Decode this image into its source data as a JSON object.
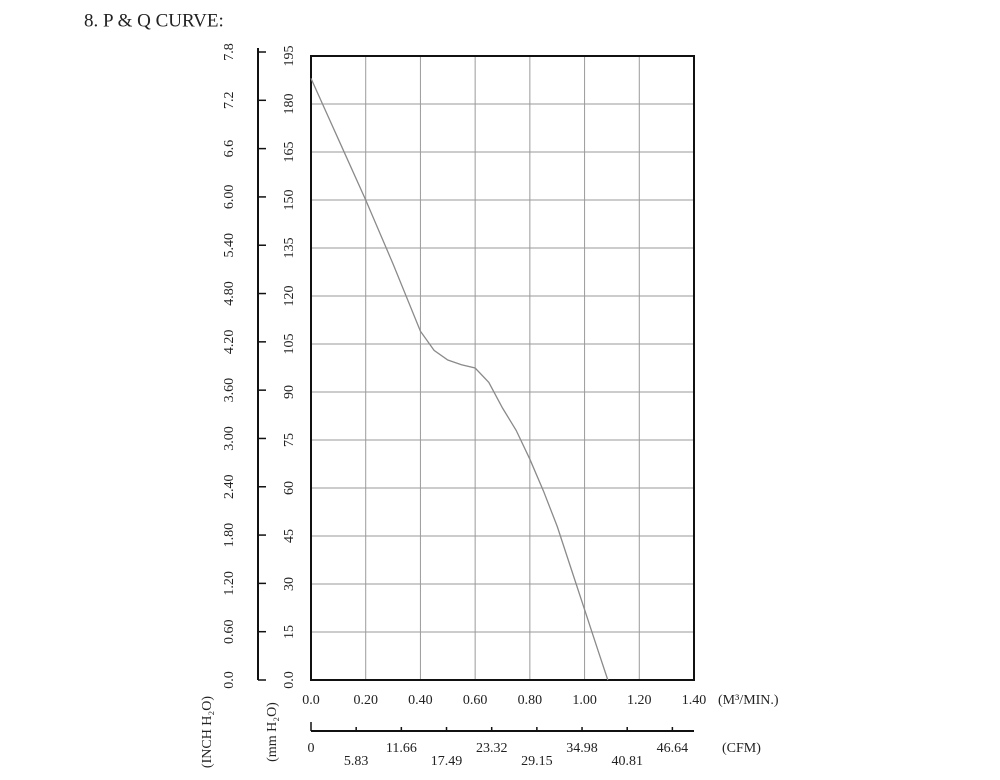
{
  "chart_data": {
    "type": "line",
    "title": "8. P & Q CURVE:",
    "x_label": "(M³/MIN.)",
    "x2_label": "(CFM)",
    "y_label": "(mm H₂O)",
    "y2_label": "(INCH H₂O)",
    "x": [
      0,
      0.1,
      0.2,
      0.3,
      0.4,
      0.45,
      0.5,
      0.55,
      0.6,
      0.65,
      0.7,
      0.75,
      0.8,
      0.85,
      0.9,
      0.95,
      1.0,
      1.05,
      1.085
    ],
    "values": [
      188,
      169,
      150,
      130,
      109,
      103,
      100,
      98.5,
      97.5,
      93,
      85,
      78,
      69,
      59,
      48,
      35,
      22,
      9,
      0
    ],
    "color": "#8a8a8a",
    "xlim": [
      0,
      1.4
    ],
    "xticks": [
      {
        "value": 0,
        "label": "0.0"
      },
      {
        "value": 0.2,
        "label": "0.20"
      },
      {
        "value": 0.4,
        "label": "0.40"
      },
      {
        "value": 0.6,
        "label": "0.60"
      },
      {
        "value": 0.8,
        "label": "0.80"
      },
      {
        "value": 1.0,
        "label": "1.00"
      },
      {
        "value": 1.2,
        "label": "1.20"
      },
      {
        "value": 1.4,
        "label": "1.40"
      }
    ],
    "x2lim": [
      0,
      49.43
    ],
    "x2ticks": [
      0,
      5.83,
      11.66,
      17.49,
      23.32,
      29.15,
      34.98,
      40.81,
      46.64
    ],
    "ylim": [
      0,
      195
    ],
    "yticks": [
      {
        "value": 0,
        "label": "0.0"
      },
      15,
      30,
      45,
      60,
      75,
      90,
      105,
      120,
      135,
      150,
      165,
      180,
      195
    ],
    "y2lim": [
      0,
      7.8
    ],
    "y2ticks": [
      {
        "value": 0,
        "label": "0.0"
      },
      {
        "value": 0.6,
        "label": "0.60"
      },
      {
        "value": 1.2,
        "label": "1.20"
      },
      {
        "value": 1.8,
        "label": "1.80"
      },
      {
        "value": 2.4,
        "label": "2.40"
      },
      {
        "value": 3.0,
        "label": "3.00"
      },
      {
        "value": 3.6,
        "label": "3.60"
      },
      {
        "value": 4.2,
        "label": "4.20"
      },
      {
        "value": 4.8,
        "label": "4.80"
      },
      {
        "value": 5.4,
        "label": "5.40"
      },
      {
        "value": 6.0,
        "label": "6.00"
      },
      {
        "value": 6.6,
        "label": "6.6"
      },
      {
        "value": 7.2,
        "label": "7.2"
      },
      {
        "value": 7.8,
        "label": "7.8"
      }
    ],
    "grid": true
  }
}
